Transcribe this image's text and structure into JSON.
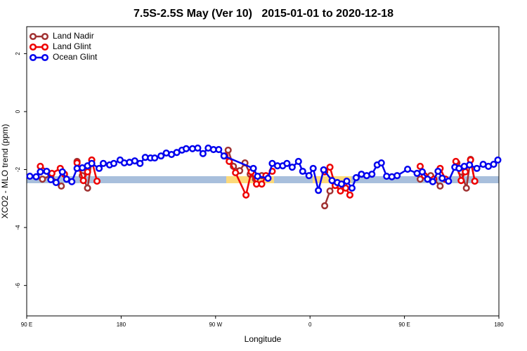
{
  "chart_data": {
    "type": "line",
    "title": "7.5S-2.5S May (Ver 10)   2015-01-01 to 2020-12-18",
    "x_label": "Longitude",
    "y_label": "XCO2 - MLO trend (ppm)",
    "xlim": [
      90,
      540
    ],
    "ylim": [
      -7.05,
      2.93
    ],
    "xticks": [
      {
        "value": 90,
        "label": "90 E"
      },
      180,
      {
        "value": 270,
        "label": "90 W"
      },
      {
        "value": 360,
        "label": "0"
      },
      {
        "value": 450,
        "label": "90 E"
      },
      {
        "value": 540,
        "label": "180"
      }
    ],
    "yticks": [
      -6,
      -4,
      -2,
      0,
      2
    ],
    "legend": "top-left",
    "series": [
      {
        "name": "Land Nadir",
        "color": "#a03232",
        "x": [
          105,
          113,
          123,
          null,
          138,
          143,
          148,
          152,
          null,
          282,
          287,
          293,
          298,
          303,
          308,
          314,
          null,
          374,
          379,
          384,
          389,
          null,
          465,
          475,
          484,
          null,
          500,
          504,
          509,
          513,
          517
        ],
        "values": [
          -2.33,
          -2.21,
          -2.57,
          null,
          -1.72,
          -2.21,
          -2.64,
          -1.67,
          null,
          -1.33,
          -1.89,
          -2.04,
          -1.77,
          -2.16,
          -2.33,
          -2.21,
          null,
          -3.25,
          -2.74,
          -2.52,
          -2.59,
          null,
          -2.33,
          -2.21,
          -2.57,
          null,
          -1.77,
          -2.08,
          -2.64,
          -1.65,
          -2.4
        ]
      },
      {
        "name": "Land Glint",
        "color": "#ee0000",
        "x": [
          103,
          114,
          122,
          126,
          null,
          138,
          144,
          148,
          152,
          157,
          null,
          279,
          283,
          289,
          299,
          304,
          309,
          314,
          318,
          324,
          null,
          374,
          379,
          384,
          389,
          394,
          398,
          null,
          465,
          469,
          478,
          484,
          489,
          null,
          499,
          504,
          508,
          513,
          517
        ],
        "values": [
          -1.89,
          -2.13,
          -1.96,
          -2.16,
          null,
          -1.77,
          -2.38,
          -2.08,
          -1.67,
          -2.4,
          null,
          -1.53,
          -1.72,
          -2.11,
          -2.88,
          -2.08,
          -2.5,
          -2.5,
          -2.21,
          -2.06,
          null,
          -2.08,
          -1.92,
          -2.55,
          -2.74,
          -2.64,
          -2.88,
          null,
          -1.89,
          -2.21,
          -2.33,
          -1.96,
          -2.33,
          null,
          -1.72,
          -2.38,
          -2.08,
          -1.67,
          -2.4
        ]
      },
      {
        "name": "Ocean Glint",
        "color": "#0000ee",
        "x": [
          93,
          99,
          103,
          109,
          113,
          118,
          124,
          128,
          133,
          138,
          143,
          148,
          152,
          159,
          163,
          169,
          173,
          179,
          183,
          188,
          193,
          198,
          203,
          208,
          212,
          218,
          223,
          228,
          233,
          238,
          242,
          248,
          253,
          258,
          263,
          268,
          273,
          278,
          306,
          310,
          320,
          324,
          329,
          334,
          338,
          343,
          349,
          353,
          359,
          363,
          368,
          373,
          381,
          386,
          390,
          395,
          400,
          404,
          409,
          414,
          419,
          424,
          428,
          433,
          438,
          443,
          453,
          462,
          467,
          472,
          477,
          482,
          486,
          492,
          498,
          502,
          507,
          512,
          519,
          525,
          530,
          535,
          539
        ],
        "values": [
          -2.23,
          -2.25,
          -2.08,
          -2.06,
          -2.35,
          -2.45,
          -2.08,
          -2.33,
          -2.42,
          -1.96,
          -1.94,
          -1.87,
          -1.79,
          -1.96,
          -1.79,
          -1.84,
          -1.79,
          -1.67,
          -1.77,
          -1.75,
          -1.7,
          -1.79,
          -1.58,
          -1.6,
          -1.6,
          -1.53,
          -1.43,
          -1.48,
          -1.41,
          -1.33,
          -1.28,
          -1.28,
          -1.26,
          -1.45,
          -1.26,
          -1.31,
          -1.31,
          -1.53,
          -1.96,
          -2.23,
          -2.3,
          -1.79,
          -1.87,
          -1.87,
          -1.79,
          -1.92,
          -1.72,
          -2.06,
          -2.21,
          -1.96,
          -2.72,
          -2.01,
          -2.38,
          -2.45,
          -2.5,
          -2.4,
          -2.64,
          -2.28,
          -2.16,
          -2.21,
          -2.16,
          -1.84,
          -1.77,
          -2.23,
          -2.25,
          -2.21,
          -1.99,
          -2.13,
          -2.08,
          -2.33,
          -2.42,
          -2.06,
          -2.3,
          -2.4,
          -1.92,
          -1.96,
          -1.89,
          -1.84,
          -1.96,
          -1.82,
          -1.89,
          -1.82,
          -1.67
        ]
      }
    ]
  }
}
